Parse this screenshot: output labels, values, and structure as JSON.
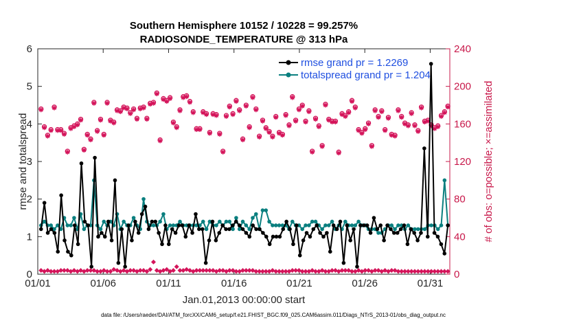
{
  "chart_data": {
    "type": "line",
    "title_line1": "Southern Hemisphere 10152 / 10228 = 99.257%",
    "title_line2": "RADIOSONDE_TEMPERATURE @ 313 hPa",
    "xlabel": "Jan.01,2013 00:00:00 start",
    "ylabel_left": "rmse and totalspread",
    "ylabel_right": "# of obs: o=possible; ×=assimilated",
    "footer": "data file: /Users/raeder/DAI/ATM_forcXX/CAM6_setup/f.e21.FHIST_BGC.f09_025.CAM6assim.011/Diags_NTrS_2013-01/obs_diag_output.nc",
    "x_range": [
      0,
      31.5
    ],
    "ylim_left": [
      0,
      6
    ],
    "ylim_right": [
      0,
      240
    ],
    "x_tick_positions": [
      0,
      5,
      10,
      15,
      20,
      25,
      30
    ],
    "x_tick_labels": [
      "01/01",
      "01/06",
      "01/11",
      "01/16",
      "01/21",
      "01/26",
      "01/31"
    ],
    "y_ticks_left": [
      "0",
      "1",
      "2",
      "3",
      "4",
      "5",
      "6"
    ],
    "y_ticks_right": [
      "0",
      "40",
      "80",
      "120",
      "160",
      "200",
      "240"
    ],
    "colors": {
      "rmse": "#000000",
      "spread": "#0a7f7f",
      "obs": "#d4145a",
      "right_axis": "#c8184a",
      "legend_text": "#1f4fe0"
    },
    "series": [
      {
        "name": "rmse",
        "legend": "rmse grand pr = 1.2269",
        "values": [
          1.2,
          1.9,
          1.1,
          1.2,
          1.1,
          0.6,
          2.1,
          0.9,
          0.6,
          0.5,
          1.3,
          0.8,
          2.95,
          1.4,
          1.3,
          0.2,
          3.1,
          1.0,
          1.1,
          1.0,
          1.4,
          0.9,
          2.5,
          0.3,
          1.2,
          0.2,
          1.3,
          0.9,
          1.4,
          1.1,
          1.6,
          1.8,
          1.2,
          1.4,
          1.4,
          1.1,
          0.8,
          1.3,
          0.8,
          1.2,
          1.1,
          1.3,
          1.3,
          1.0,
          1.3,
          1.1,
          1.6,
          1.2,
          1.2,
          0.3,
          0.9,
          1.4,
          0.9,
          1.1,
          1.3,
          1.2,
          1.2,
          1.3,
          1.4,
          1.3,
          1.2,
          1.1,
          1.0,
          1.3,
          1.2,
          1.2,
          1.1,
          1.0,
          0.8,
          1.0,
          1.0,
          1.0,
          1.2,
          1.4,
          1.2,
          0.8,
          1.3,
          0.5,
          0.9,
          1.1,
          1.0,
          1.2,
          1.3,
          1.1,
          1.0,
          1.1,
          0.6,
          1.3,
          1.2,
          1.4,
          0.3,
          1.3,
          0.9,
          1.2,
          0.2,
          1.3,
          1.3,
          1.3,
          1.1,
          1.5,
          1.2,
          1.3,
          0.9,
          1.3,
          1.2,
          1.1,
          1.1,
          1.2,
          1.3,
          0.8,
          1.2,
          1.1,
          0.9,
          1.1,
          3.35,
          1.0,
          5.6,
          1.1,
          1.0,
          0.8,
          0.55,
          1.3
        ]
      },
      {
        "name": "totalspread",
        "legend": "totalspread grand pr = 1.204",
        "values": [
          1.3,
          1.4,
          1.3,
          1.3,
          1.2,
          1.3,
          1.2,
          1.5,
          1.3,
          1.3,
          1.5,
          1.2,
          1.6,
          1.2,
          1.3,
          1.3,
          2.5,
          1.3,
          1.2,
          1.4,
          1.3,
          1.4,
          1.3,
          1.6,
          1.2,
          1.4,
          1.3,
          1.3,
          1.5,
          1.3,
          1.2,
          2.0,
          1.4,
          1.3,
          1.3,
          1.3,
          1.4,
          1.6,
          1.2,
          1.3,
          1.3,
          1.3,
          1.4,
          1.3,
          1.3,
          1.3,
          1.3,
          1.3,
          1.3,
          1.4,
          1.2,
          1.4,
          1.3,
          1.3,
          1.4,
          1.3,
          1.4,
          1.4,
          1.2,
          1.5,
          1.2,
          1.4,
          1.3,
          1.2,
          1.5,
          1.6,
          1.2,
          1.7,
          1.7,
          1.4,
          1.3,
          1.3,
          1.3,
          1.3,
          1.3,
          1.2,
          1.4,
          1.3,
          1.3,
          1.2,
          1.3,
          1.3,
          1.4,
          1.4,
          1.3,
          1.2,
          1.3,
          1.3,
          1.4,
          1.2,
          1.3,
          1.2,
          1.4,
          1.3,
          1.3,
          1.3,
          1.4,
          1.3,
          1.3,
          1.2,
          1.2,
          1.2,
          1.1,
          1.1,
          1.2,
          1.3,
          1.3,
          1.2,
          1.3,
          1.3,
          1.2,
          1.3,
          1.2,
          1.2,
          1.2,
          1.2,
          1.2,
          1.3,
          1.3,
          1.3,
          1.2,
          1.3,
          2.5,
          1.3
        ]
      },
      {
        "name": "possible",
        "values": [
          176,
          157,
          148,
          154,
          178,
          154,
          154,
          150,
          131,
          156,
          158,
          160,
          165,
          133,
          149,
          144,
          183,
          153,
          165,
          149,
          183,
          164,
          162,
          175,
          174,
          178,
          177,
          172,
          176,
          166,
          177,
          178,
          166,
          182,
          183,
          193,
          143,
          187,
          185,
          188,
          162,
          157,
          175,
          189,
          190,
          184,
          173,
          155,
          155,
          173,
          171,
          151,
          171,
          170,
          150,
          131,
          169,
          179,
          171,
          185,
          175,
          144,
          180,
          157,
          189,
          176,
          147,
          164,
          156,
          152,
          147,
          168,
          151,
          149,
          170,
          159,
          189,
          164,
          176,
          180,
          163,
          174,
          131,
          166,
          158,
          137,
          181,
          165,
          163,
          163,
          130,
          171,
          169,
          173,
          185,
          178,
          154,
          151,
          155,
          161,
          137,
          175,
          168,
          174,
          154,
          167,
          149,
          148,
          175,
          168,
          161,
          159,
          172,
          159,
          153,
          178,
          163,
          164,
          159,
          156,
          158,
          169,
          173,
          179
        ]
      },
      {
        "name": "assimilated",
        "values": [
          175,
          156,
          147,
          153,
          177,
          153,
          153,
          149,
          130,
          155,
          157,
          159,
          164,
          132,
          148,
          143,
          182,
          152,
          164,
          148,
          182,
          163,
          161,
          174,
          173,
          177,
          176,
          171,
          175,
          165,
          176,
          177,
          165,
          181,
          182,
          192,
          142,
          186,
          184,
          187,
          161,
          156,
          174,
          188,
          189,
          183,
          172,
          154,
          154,
          172,
          170,
          150,
          170,
          169,
          149,
          130,
          168,
          178,
          170,
          184,
          174,
          143,
          179,
          156,
          188,
          175,
          146,
          163,
          155,
          151,
          146,
          167,
          150,
          148,
          169,
          158,
          188,
          163,
          175,
          179,
          162,
          173,
          130,
          165,
          157,
          136,
          180,
          164,
          162,
          162,
          129,
          170,
          168,
          172,
          184,
          177,
          153,
          150,
          154,
          160,
          136,
          174,
          167,
          173,
          153,
          166,
          148,
          147,
          174,
          167,
          160,
          158,
          171,
          158,
          152,
          177,
          162,
          163,
          158,
          155,
          157,
          168,
          172,
          178
        ]
      },
      {
        "name": "rejected",
        "values": [
          4,
          3,
          4,
          3,
          3,
          3,
          4,
          4,
          4,
          3,
          4,
          3,
          4,
          3,
          4,
          4,
          4,
          3,
          3,
          4,
          3,
          3,
          5,
          4,
          3,
          4,
          3,
          4,
          4,
          3,
          4,
          4,
          3,
          5,
          13,
          4,
          3,
          4,
          5,
          3,
          4,
          8,
          4,
          4,
          5,
          4,
          3,
          4,
          4,
          4,
          4,
          4,
          4,
          3,
          4,
          4,
          3,
          4,
          4,
          3,
          3,
          4,
          4,
          4,
          4,
          3,
          3,
          3,
          3,
          3,
          4,
          3,
          3,
          3,
          3,
          3,
          4,
          4,
          4,
          3,
          3,
          3,
          4,
          3,
          3,
          4,
          3,
          3,
          4,
          4,
          3,
          4,
          4,
          4,
          3,
          3,
          4,
          3,
          4,
          4,
          3,
          4,
          4,
          3,
          4,
          3,
          4,
          4,
          3,
          3,
          3,
          3,
          3,
          3,
          3,
          3,
          3,
          3,
          3,
          3,
          3,
          3,
          3,
          3
        ]
      }
    ]
  }
}
